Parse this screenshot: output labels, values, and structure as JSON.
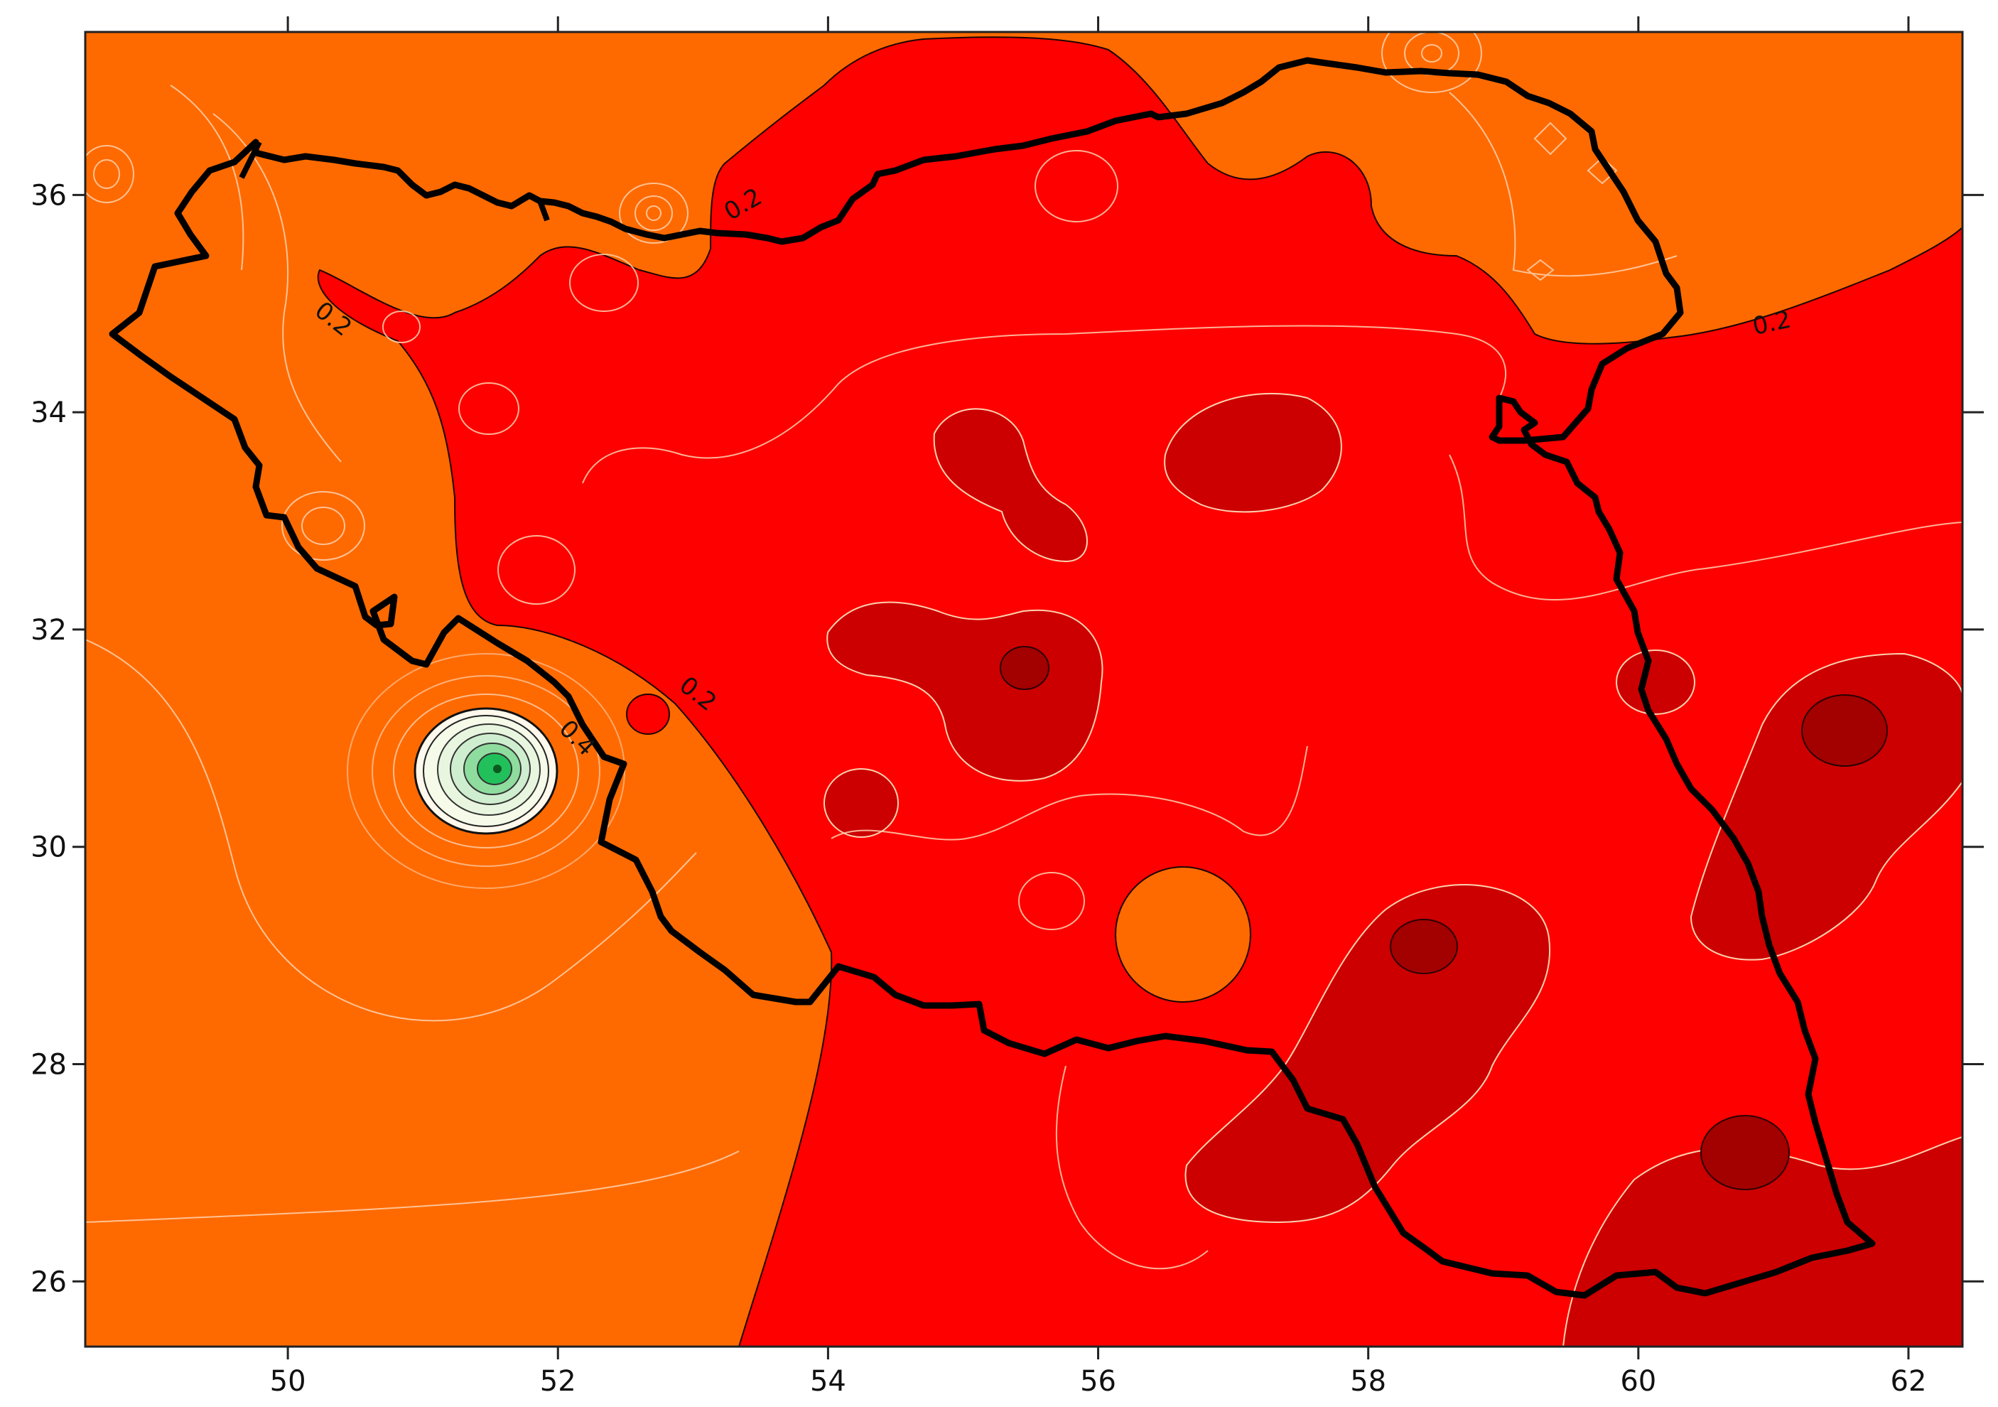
{
  "map": {
    "x_axis": {
      "range": [
        48.5,
        62.4
      ],
      "ticks": [
        50,
        52,
        54,
        56,
        58,
        60,
        62
      ],
      "tick_labels": [
        "50",
        "52",
        "54",
        "56",
        "58",
        "60",
        "62"
      ]
    },
    "y_axis": {
      "range": [
        25.4,
        37.5
      ],
      "ticks": [
        26,
        28,
        30,
        32,
        34,
        36
      ],
      "tick_labels": [
        "26",
        "28",
        "30",
        "32",
        "34",
        "36"
      ]
    },
    "contour_labels": [
      {
        "text": "0.2",
        "lon": 53.4,
        "lat": 35.85,
        "angle": -30
      },
      {
        "text": "0.2",
        "lon": 50.3,
        "lat": 34.8,
        "angle": 38
      },
      {
        "text": "0.2",
        "lon": 61.0,
        "lat": 34.75,
        "angle": -12
      },
      {
        "text": "0.2",
        "lon": 53.0,
        "lat": 31.35,
        "angle": 38
      },
      {
        "text": "0.4",
        "lon": 52.1,
        "lat": 30.95,
        "angle": 45
      }
    ],
    "colors": {
      "low_band": "#ff6a00",
      "mid_band": "#ff0000",
      "high_band": "#cc0000",
      "peak_band": "#a30000",
      "minimum_center": "#22c05a",
      "minimum_ring": "#fff8ec",
      "isoline": "#ffd2b0",
      "border": "#000000"
    }
  }
}
